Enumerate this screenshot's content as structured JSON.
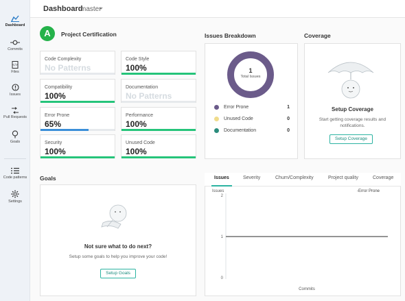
{
  "sidebar": {
    "items": [
      {
        "label": "Dashboard",
        "icon": "dashboard-icon"
      },
      {
        "label": "Commits",
        "icon": "commit-icon"
      },
      {
        "label": "Files",
        "icon": "file-icon"
      },
      {
        "label": "Issues",
        "icon": "issue-icon"
      },
      {
        "label": "Pull Requests",
        "icon": "pull-request-icon"
      },
      {
        "label": "Goals",
        "icon": "goal-icon"
      },
      {
        "label": "Code patterns",
        "icon": "list-icon"
      },
      {
        "label": "Settings",
        "icon": "gear-icon"
      }
    ]
  },
  "header": {
    "title": "Dashboard",
    "branch": "master"
  },
  "certification": {
    "title": "Project Certification",
    "grade": "A",
    "metrics": [
      {
        "label": "Code Complexity",
        "value": "No Patterns",
        "progress": 0
      },
      {
        "label": "Code Style",
        "value": "100%",
        "progress": 1.0
      },
      {
        "label": "Compatibility",
        "value": "100%",
        "progress": 1.0
      },
      {
        "label": "Documentation",
        "value": "No Patterns",
        "progress": 0
      },
      {
        "label": "Error Prone",
        "value": "65%",
        "progress": 0.65
      },
      {
        "label": "Performance",
        "value": "100%",
        "progress": 1.0
      },
      {
        "label": "Security",
        "value": "100%",
        "progress": 1.0
      },
      {
        "label": "Unused Code",
        "value": "100%",
        "progress": 1.0
      }
    ]
  },
  "issues_breakdown": {
    "title": "Issues Breakdown",
    "total": "1",
    "total_label": "Total Issues",
    "items": [
      {
        "name": "Error Prone",
        "count": "1",
        "color": "#6b5b8a"
      },
      {
        "name": "Unused Code",
        "count": "0",
        "color": "#f0dc8c"
      },
      {
        "name": "Documentation",
        "count": "0",
        "color": "#2a8c7c"
      }
    ]
  },
  "coverage": {
    "title": "Coverage",
    "heading": "Setup Coverage",
    "description_line1": "Start getting coverage results and",
    "description_line2": "notifications.",
    "button": "Setup Coverage"
  },
  "goals": {
    "title": "Goals",
    "heading": "Not sure what to do next?",
    "description": "Setup some goals to help you improve your code!",
    "button": "Setup Goals"
  },
  "issues_chart": {
    "tabs": [
      "Issues",
      "Severity",
      "Churn/Complexity",
      "Project quality",
      "Coverage"
    ],
    "active_tab": "Issues"
  },
  "chart_data": {
    "type": "line",
    "ylabel": "Issues",
    "xlabel": "Commits",
    "ylim": [
      0,
      2
    ],
    "y_ticks": [
      "2",
      "1",
      "0"
    ],
    "series": [
      {
        "name": "Error Prone",
        "values": [
          1,
          1
        ],
        "color": "#555555"
      }
    ],
    "legend_marker": "-"
  }
}
